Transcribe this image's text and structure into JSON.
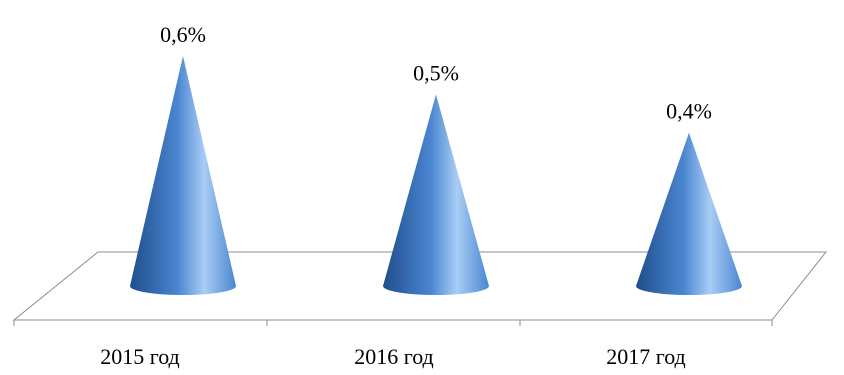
{
  "chart_data": {
    "type": "bar",
    "style": "3d-cone",
    "categories": [
      "2015 год",
      "2016 год",
      "2017 год"
    ],
    "values": [
      0.6,
      0.5,
      0.4
    ],
    "data_labels": [
      "0,6%",
      "0,5%",
      "0,4%"
    ],
    "unit": "%",
    "title": "",
    "xlabel": "",
    "ylabel": "",
    "ylim": [
      0,
      0.6
    ],
    "grid": false,
    "legend": "none",
    "colors": {
      "cone_dark": "#1f4e8c",
      "cone_mid": "#4a86d0",
      "cone_light": "#a9cdf5",
      "floor_line": "#8c8c8c"
    }
  }
}
